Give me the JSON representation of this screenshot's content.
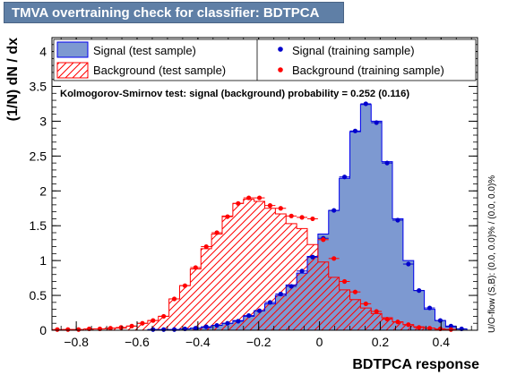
{
  "window": {
    "title": "TMVA overtraining check for classifier: BDTPCA"
  },
  "colors": {
    "title_bg": "#5f7fa6",
    "signal_fill": "#7d99d1",
    "signal_line": "#0000ee",
    "signal_points": "#0000cc",
    "background_hatch": "#ff0000",
    "background_points": "#ff0000"
  },
  "legend": {
    "signal_test": "Signal (test sample)",
    "background_test": "Background (test sample)",
    "signal_train": "Signal (training sample)",
    "background_train": "Background (training sample)"
  },
  "ks_text": "Kolmogorov-Smirnov test: signal (background) probability = 0.252 (0.116)",
  "side_text": "U/O-flow (S,B): (0.0, 0.0)% / (0.0, 0.0)%",
  "chart_data": {
    "type": "histogram",
    "xlabel": "BDTPCA response",
    "ylabel": "(1/N) dN / dx",
    "xlim": [
      -0.88,
      0.52
    ],
    "ylim": [
      0,
      4.2
    ],
    "x_ticks": [
      -0.8,
      -0.6,
      -0.4,
      -0.2,
      0,
      0.2,
      0.4
    ],
    "x_tick_labels": [
      "−0.8",
      "−0.6",
      "−0.4",
      "−0.2",
      "0",
      "0.2",
      "0.4"
    ],
    "y_ticks": [
      0,
      0.5,
      1,
      1.5,
      2,
      2.5,
      3,
      3.5,
      4
    ],
    "y_tick_labels": [
      "0",
      "0.5",
      "1",
      "1.5",
      "2",
      "2.5",
      "3",
      "3.5",
      "4"
    ],
    "bin_edges": [
      -0.88,
      -0.845,
      -0.81,
      -0.775,
      -0.74,
      -0.705,
      -0.67,
      -0.635,
      -0.6,
      -0.565,
      -0.53,
      -0.495,
      -0.46,
      -0.425,
      -0.39,
      -0.355,
      -0.32,
      -0.285,
      -0.25,
      -0.215,
      -0.18,
      -0.145,
      -0.11,
      -0.075,
      -0.04,
      -0.005,
      0.03,
      0.065,
      0.1,
      0.135,
      0.17,
      0.205,
      0.24,
      0.275,
      0.31,
      0.345,
      0.38,
      0.415,
      0.45,
      0.485,
      0.52
    ],
    "series": [
      {
        "name": "Signal (test sample)",
        "style": "filled",
        "values": [
          0,
          0,
          0,
          0,
          0,
          0,
          0,
          0,
          0,
          0.01,
          0.01,
          0.01,
          0.02,
          0.03,
          0.04,
          0.07,
          0.1,
          0.14,
          0.2,
          0.28,
          0.38,
          0.5,
          0.65,
          0.82,
          1.06,
          1.38,
          1.72,
          2.18,
          2.85,
          3.24,
          3.0,
          2.42,
          1.6,
          1.0,
          0.57,
          0.3,
          0.14,
          0.05,
          0.02,
          0
        ]
      },
      {
        "name": "Background (test sample)",
        "style": "hatched",
        "values": [
          0,
          0.01,
          0.01,
          0.02,
          0.02,
          0.03,
          0.03,
          0.06,
          0.1,
          0.14,
          0.2,
          0.45,
          0.64,
          0.88,
          1.17,
          1.38,
          1.64,
          1.82,
          1.88,
          1.85,
          1.75,
          1.67,
          1.53,
          1.46,
          1.23,
          0.98,
          0.76,
          0.58,
          0.44,
          0.32,
          0.24,
          0.18,
          0.12,
          0.08,
          0.05,
          0.03,
          0.01,
          0.01,
          0,
          0
        ]
      },
      {
        "name": "Signal (training sample)",
        "style": "points",
        "values": [
          0,
          0,
          0,
          0,
          0,
          0,
          0,
          0,
          0,
          0.01,
          0.01,
          0.01,
          0.02,
          0.03,
          0.05,
          0.07,
          0.1,
          0.13,
          0.21,
          0.28,
          0.4,
          0.52,
          0.63,
          0.85,
          1.05,
          1.32,
          1.72,
          2.2,
          2.86,
          3.25,
          2.98,
          2.4,
          1.58,
          0.95,
          0.57,
          0.32,
          0.14,
          0.06,
          0.02,
          0
        ]
      },
      {
        "name": "Background (training sample)",
        "style": "points",
        "values": [
          0.01,
          0.01,
          0.01,
          0.02,
          0.02,
          0.03,
          0.04,
          0.06,
          0.1,
          0.14,
          0.2,
          0.45,
          0.64,
          0.9,
          1.2,
          1.4,
          1.63,
          1.82,
          1.9,
          1.9,
          1.79,
          1.75,
          1.64,
          1.62,
          1.6,
          1.3,
          1.03,
          0.7,
          0.55,
          0.38,
          0.27,
          0.16,
          0.12,
          0.08,
          0.04,
          0.03,
          0.02,
          0.01,
          0,
          0
        ]
      }
    ],
    "grid": false,
    "legend_position": "top"
  }
}
